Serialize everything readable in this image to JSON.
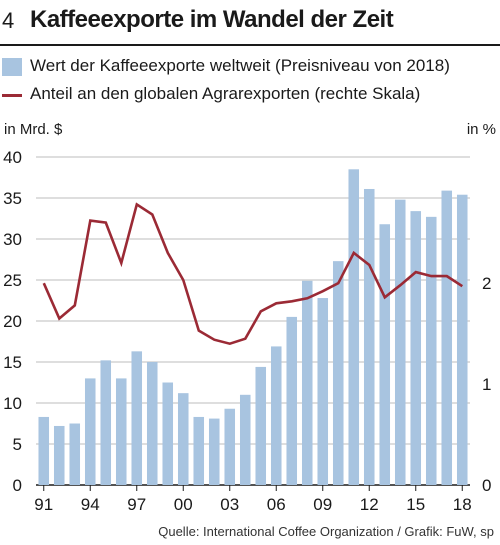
{
  "header": {
    "number": "4",
    "title": "Kaffeeexporte im Wandel der Zeit"
  },
  "legend": {
    "bar_label": "Wert der Kaffeeexporte weltweit (Preisniveau von 2018)",
    "line_label": "Anteil an den globalen Agrarexporten (rechte Skala)"
  },
  "footer": {
    "source": "Quelle: International Coffee Organization / Grafik: FuW, sp"
  },
  "colors": {
    "bar": "#a8c4e0",
    "line": "#9b2a35",
    "grid": "#bdbdbd",
    "text": "#1a1a1a"
  },
  "chart_data": {
    "type": "bar+line",
    "x": [
      1991,
      1992,
      1993,
      1994,
      1995,
      1996,
      1997,
      1998,
      1999,
      2000,
      2001,
      2002,
      2003,
      2004,
      2005,
      2006,
      2007,
      2008,
      2009,
      2010,
      2011,
      2012,
      2013,
      2014,
      2015,
      2016,
      2017,
      2018
    ],
    "x_tick_labels": [
      "91",
      "94",
      "97",
      "00",
      "03",
      "06",
      "09",
      "12",
      "15",
      "18"
    ],
    "x_tick_years": [
      1991,
      1994,
      1997,
      2000,
      2003,
      2006,
      2009,
      2012,
      2015,
      2018
    ],
    "left_axis": {
      "label": "in Mrd. $",
      "range": [
        0,
        40
      ],
      "ticks": [
        0,
        5,
        10,
        15,
        20,
        25,
        30,
        35,
        40
      ]
    },
    "right_axis": {
      "label": "in %",
      "range": [
        0,
        3.25
      ],
      "ticks": [
        0,
        1,
        2
      ]
    },
    "series": [
      {
        "name": "Wert der Kaffeeexporte weltweit (Preisniveau von 2018)",
        "type": "bar",
        "axis": "left",
        "values": [
          8.3,
          7.2,
          7.5,
          13.0,
          15.2,
          13.0,
          16.3,
          15.0,
          12.5,
          11.2,
          8.3,
          8.1,
          9.3,
          11.0,
          14.4,
          16.9,
          20.5,
          24.9,
          22.8,
          27.3,
          38.5,
          36.1,
          31.8,
          34.8,
          33.4,
          32.7,
          35.9,
          35.4
        ]
      },
      {
        "name": "Anteil an den globalen Agrarexporten (rechte Skala)",
        "type": "line",
        "axis": "right",
        "values": [
          2.0,
          1.65,
          1.78,
          2.62,
          2.6,
          2.2,
          2.78,
          2.68,
          2.3,
          2.03,
          1.53,
          1.44,
          1.4,
          1.45,
          1.72,
          1.8,
          1.82,
          1.85,
          1.92,
          2.0,
          2.3,
          2.18,
          1.86,
          1.98,
          2.11,
          2.07,
          2.07,
          1.97
        ]
      }
    ],
    "grid": true
  }
}
